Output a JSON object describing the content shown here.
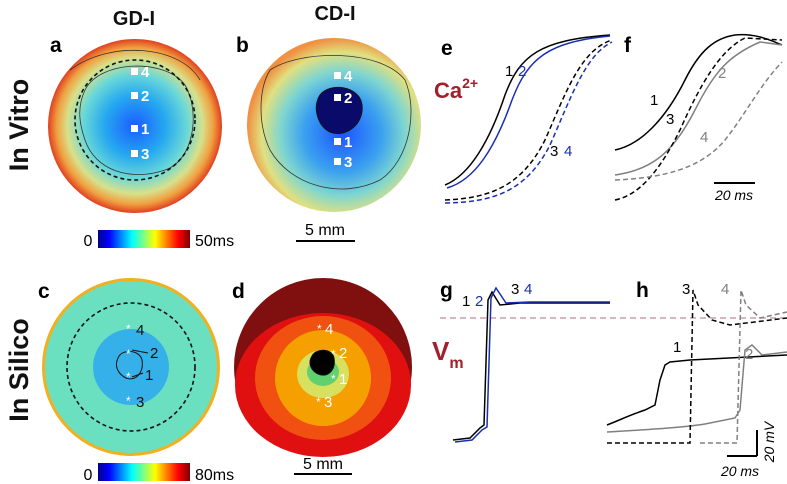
{
  "row_labels": {
    "top": "In Vitro",
    "bottom": "In Silico"
  },
  "column_titles": {
    "left": "GD-I",
    "right": "CD-I"
  },
  "panel_letters": {
    "a": "a",
    "b": "b",
    "c": "c",
    "d": "d",
    "e": "e",
    "f": "f",
    "g": "g",
    "h": "h"
  },
  "colorbars": {
    "top": {
      "min": "0",
      "max": "50ms"
    },
    "bottom": {
      "min": "0",
      "max": "80ms"
    }
  },
  "scalebars": {
    "top_map": "5 mm",
    "bottom_map": "5 mm",
    "f_time": "20 ms",
    "h_time": "20 ms",
    "h_voltage": "20 mV"
  },
  "signal_labels": {
    "calcium_base": "Ca",
    "calcium_sup": "2+",
    "voltage_base": "V",
    "voltage_sub": "m"
  },
  "site_labels": [
    "1",
    "2",
    "3",
    "4"
  ],
  "colors": {
    "black_trace": "#000000",
    "blue_trace": "#1a2fb0",
    "gray_trace": "#808080",
    "signal_label": "#a0202c",
    "threshold_line": "#b07080"
  }
}
